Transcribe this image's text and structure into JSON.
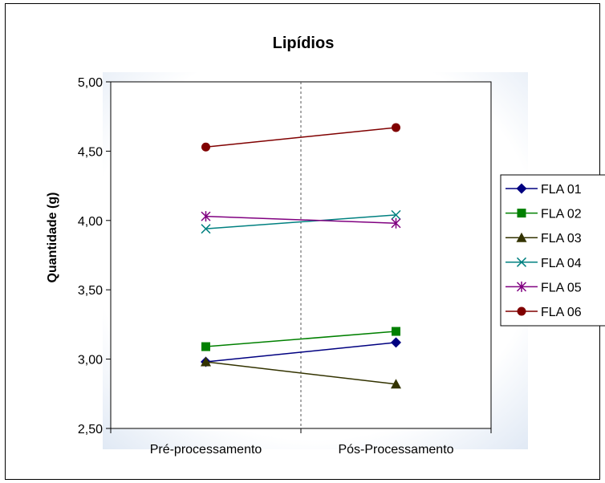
{
  "chart_data": {
    "type": "line",
    "title": "Lipídios",
    "xlabel": "",
    "ylabel": "Quantidade (g)",
    "categories": [
      "Pré-processamento",
      "Pós-Processamento"
    ],
    "ylim": [
      2.5,
      5.0
    ],
    "yticks": [
      2.5,
      3.0,
      3.5,
      4.0,
      4.5,
      5.0
    ],
    "ytick_labels": [
      "2,50",
      "3,00",
      "3,50",
      "4,00",
      "4,50",
      "5,00"
    ],
    "grid": false,
    "legend_position": "right",
    "series": [
      {
        "name": "FLA 01",
        "values": [
          2.98,
          3.12
        ],
        "color": "#000080",
        "marker": "diamond"
      },
      {
        "name": "FLA 02",
        "values": [
          3.09,
          3.2
        ],
        "color": "#008000",
        "marker": "square"
      },
      {
        "name": "FLA 03",
        "values": [
          2.98,
          2.82
        ],
        "color": "#333300",
        "marker": "triangle"
      },
      {
        "name": "FLA 04",
        "values": [
          3.94,
          4.04
        ],
        "color": "#008080",
        "marker": "x"
      },
      {
        "name": "FLA 05",
        "values": [
          4.03,
          3.98
        ],
        "color": "#800080",
        "marker": "star"
      },
      {
        "name": "FLA 06",
        "values": [
          4.53,
          4.67
        ],
        "color": "#800000",
        "marker": "circle"
      }
    ]
  }
}
